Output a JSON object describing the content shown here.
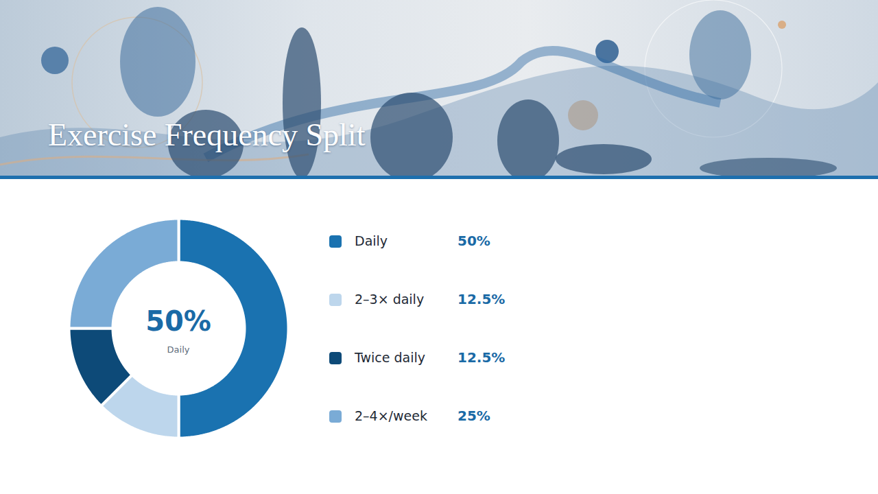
{
  "chart_data": {
    "type": "donut",
    "title": "Exercise Frequency Split",
    "categories": [
      "Daily",
      "2–3× daily",
      "Twice daily",
      "2–4×/week"
    ],
    "values": [
      50,
      12.5,
      12.5,
      25
    ],
    "value_labels": [
      "50%",
      "12.5%",
      "12.5%",
      "25%"
    ],
    "colors": [
      "#1a72b0",
      "#bdd6ec",
      "#0d4a78",
      "#7aabd6"
    ],
    "legend": "right"
  }
}
